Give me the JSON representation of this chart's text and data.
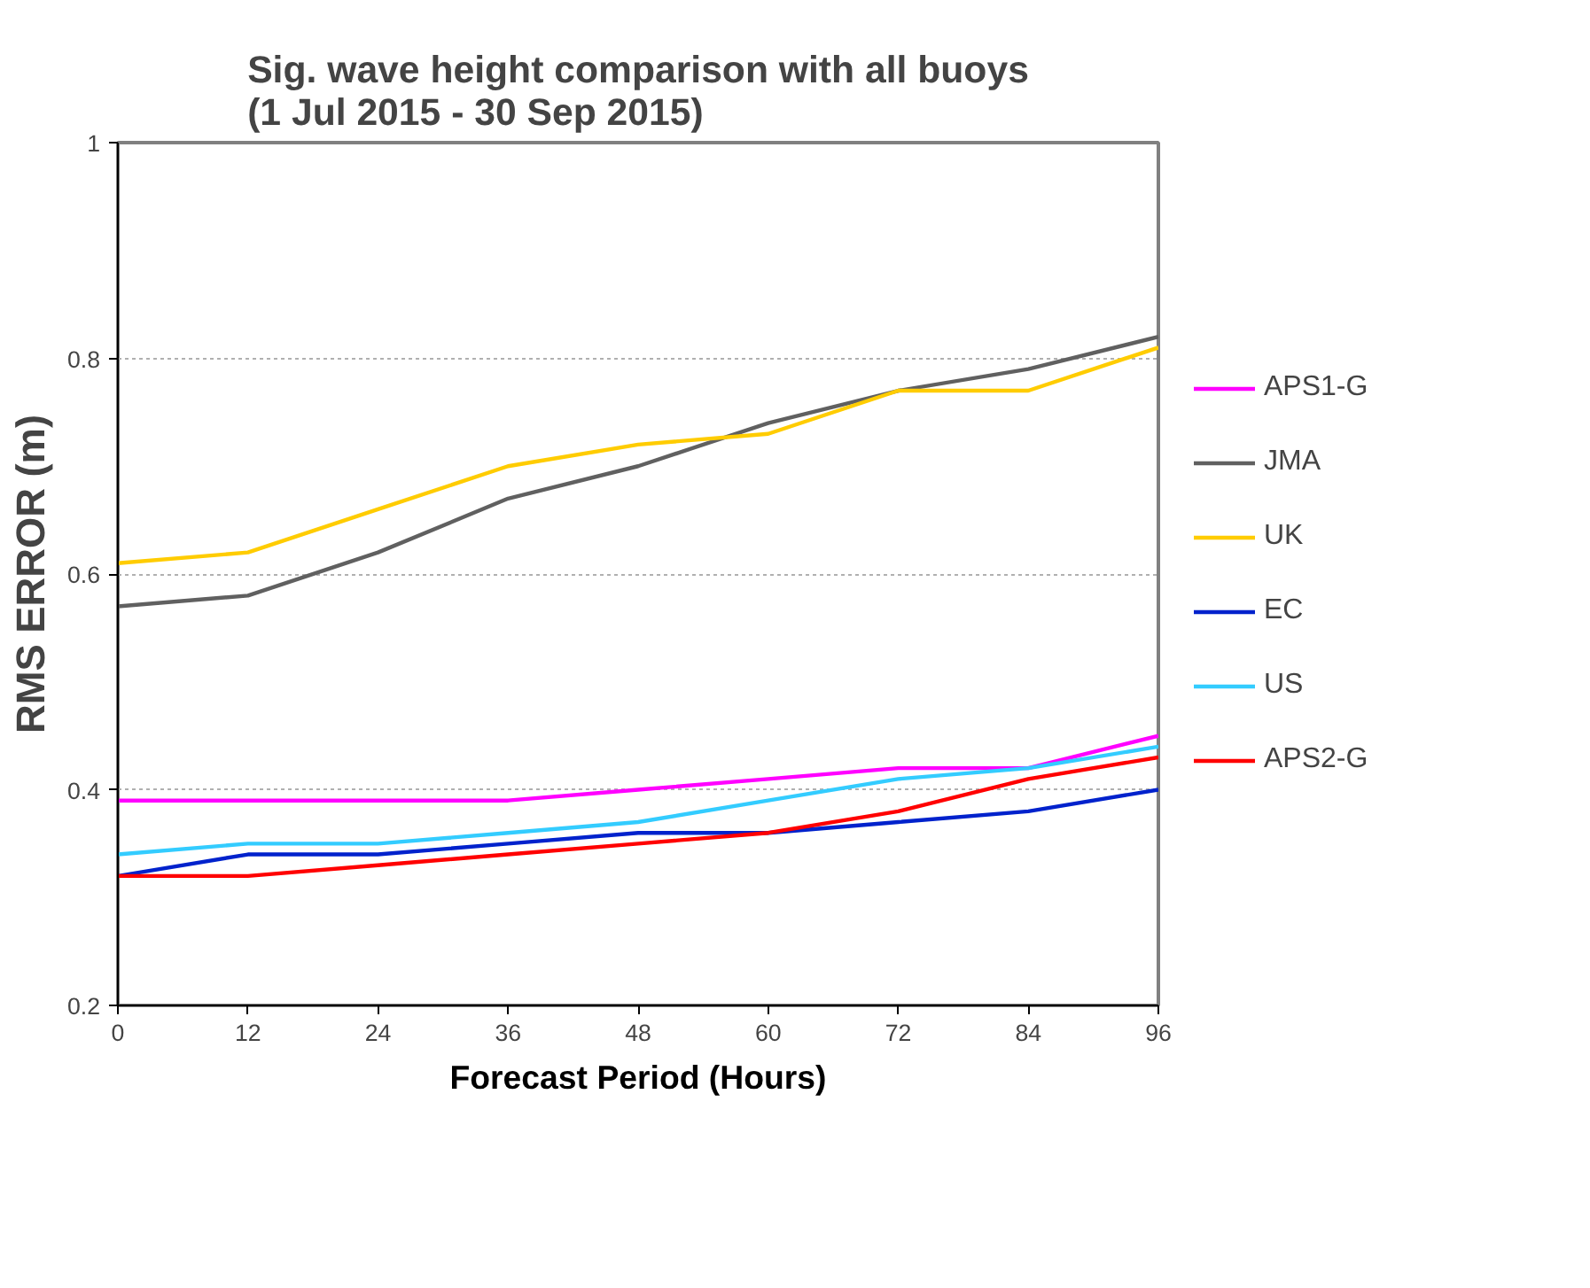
{
  "chart_data": {
    "type": "line",
    "title": "Sig. wave height comparison with all buoys\n(1 Jul 2015 - 30 Sep 2015)",
    "xlabel": "Forecast Period (Hours)",
    "ylabel": "RMS ERROR (m)",
    "x": [
      0,
      12,
      24,
      36,
      48,
      60,
      72,
      84,
      96
    ],
    "xlim": [
      0,
      96
    ],
    "xticks": [
      0,
      12,
      24,
      36,
      48,
      60,
      72,
      84,
      96
    ],
    "ylim": [
      0.2,
      1
    ],
    "yticks": [
      0.2,
      0.4,
      0.6,
      0.8,
      1
    ],
    "grid": "y",
    "legend": "right",
    "marker": "none",
    "line_style": "solid",
    "series": [
      {
        "name": "APS1-G",
        "color": "#ff00ff",
        "values": [
          0.39,
          0.39,
          0.39,
          0.39,
          0.4,
          0.41,
          0.42,
          0.42,
          0.45
        ]
      },
      {
        "name": "JMA",
        "color": "#606060",
        "values": [
          0.57,
          0.58,
          0.62,
          0.67,
          0.7,
          0.74,
          0.77,
          0.79,
          0.82
        ]
      },
      {
        "name": "UK",
        "color": "#ffcc00",
        "values": [
          0.61,
          0.62,
          0.66,
          0.7,
          0.72,
          0.73,
          0.77,
          0.77,
          0.81
        ]
      },
      {
        "name": "EC",
        "color": "#0022cc",
        "values": [
          0.32,
          0.34,
          0.34,
          0.35,
          0.36,
          0.36,
          0.37,
          0.38,
          0.4
        ]
      },
      {
        "name": "US",
        "color": "#33ccff",
        "values": [
          0.34,
          0.35,
          0.35,
          0.36,
          0.37,
          0.39,
          0.41,
          0.42,
          0.44
        ]
      },
      {
        "name": "APS2-G",
        "color": "#ff0000",
        "values": [
          0.32,
          0.32,
          0.33,
          0.34,
          0.35,
          0.36,
          0.38,
          0.41,
          0.43
        ]
      }
    ]
  }
}
